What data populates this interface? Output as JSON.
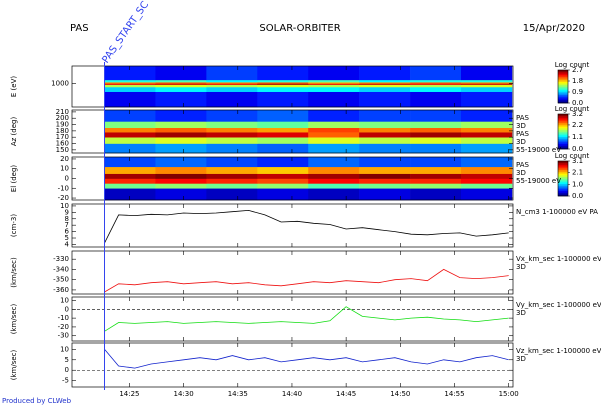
{
  "header": {
    "left": "PAS",
    "center": "SOLAR-ORBITER",
    "right": "15/Apr/2020",
    "footer": "Produced by CLWeb"
  },
  "time_axis": {
    "xlim": [
      19.7,
      60.4
    ],
    "xticks": [
      {
        "value": 25,
        "label": "14:25"
      },
      {
        "value": 30,
        "label": "14:30"
      },
      {
        "value": 35,
        "label": "14:35"
      },
      {
        "value": 40,
        "label": "14:40"
      },
      {
        "value": 45,
        "label": "14:45"
      },
      {
        "value": 50,
        "label": "14:50"
      },
      {
        "value": 55,
        "label": "14:55"
      },
      {
        "value": 60,
        "label": "15:00"
      }
    ]
  },
  "marker": {
    "x": 22.7,
    "label": "PAS_START_SC",
    "color": "#3344ee"
  },
  "chart_data": [
    {
      "type": "spectrogram",
      "y_label": "E (eV)",
      "log": true,
      "ylim": [
        10,
        30000
      ],
      "yticks": [
        1000
      ],
      "x": [
        22.7,
        27.4,
        32.1,
        36.8,
        41.5,
        46.2,
        50.9,
        55.6,
        60.3
      ],
      "bins": [
        10,
        200,
        500,
        800,
        1000,
        1300,
        2000,
        30000
      ],
      "values": [
        [
          0.3,
          0.4,
          0.3,
          0.4,
          0.3,
          0.4,
          0.3,
          0.4
        ],
        [
          0.9,
          1.0,
          0.9,
          1.0,
          1.0,
          0.9,
          1.0,
          0.9
        ],
        [
          1.5,
          1.6,
          1.5,
          1.6,
          1.5,
          1.6,
          1.5,
          1.6
        ],
        [
          2.4,
          2.5,
          2.4,
          2.6,
          2.4,
          2.5,
          2.4,
          2.5
        ],
        [
          2.0,
          2.1,
          2.0,
          2.1,
          1.9,
          2.0,
          2.1,
          2.0
        ],
        [
          1.1,
          1.2,
          1.0,
          1.1,
          1.2,
          1.0,
          1.1,
          1.1
        ],
        [
          0.4,
          0.3,
          0.5,
          0.4,
          0.3,
          0.4,
          0.5,
          0.3
        ]
      ],
      "colorbar": {
        "title": "Log count",
        "lim": [
          0,
          2.7
        ],
        "ticks": [
          2.7,
          1.8,
          0.9,
          {
            "value": 0,
            "label": "0.0"
          }
        ]
      },
      "side_labels": []
    },
    {
      "type": "spectrogram",
      "y_label": "Az (deg)",
      "log": false,
      "ylim": [
        145,
        213
      ],
      "yticks": [
        210,
        200,
        190,
        180,
        170,
        160,
        150
      ],
      "x": [
        22.7,
        27.4,
        32.1,
        36.8,
        41.5,
        46.2,
        50.9,
        55.6,
        60.3
      ],
      "bins": [
        145,
        160,
        170,
        178,
        185,
        195,
        213
      ],
      "values": [
        [
          0.8,
          0.9,
          0.8,
          0.7,
          0.9,
          0.8,
          0.8,
          0.9
        ],
        [
          1.8,
          1.9,
          1.8,
          1.7,
          1.9,
          1.8,
          1.9,
          1.8
        ],
        [
          3.0,
          3.1,
          3.0,
          2.9,
          2.5,
          3.0,
          3.1,
          3.0
        ],
        [
          2.4,
          2.5,
          2.4,
          2.3,
          2.6,
          2.4,
          2.5,
          2.4
        ],
        [
          1.6,
          1.7,
          1.6,
          1.5,
          1.7,
          1.6,
          1.6,
          1.7
        ],
        [
          0.6,
          0.5,
          0.6,
          0.7,
          0.5,
          0.6,
          0.6,
          0.5
        ]
      ],
      "colorbar": {
        "title": "Log count",
        "lim": [
          0,
          3.2
        ],
        "ticks": [
          3.2,
          2.2,
          1.1,
          {
            "value": 0,
            "label": "0.0"
          }
        ]
      },
      "side_labels": [
        "PAS",
        "3D",
        "PAS",
        "3D",
        "55-19000 eV"
      ]
    },
    {
      "type": "spectrogram",
      "y_label": "El (deg)",
      "log": false,
      "ylim": [
        -22,
        22
      ],
      "yticks": [
        20,
        10,
        0,
        -10,
        -20
      ],
      "x": [
        22.7,
        27.4,
        32.1,
        36.8,
        41.5,
        46.2,
        50.9,
        55.6,
        60.3
      ],
      "bins": [
        -22,
        -10,
        -5,
        0,
        5,
        12,
        22
      ],
      "values": [
        [
          0.2,
          0.3,
          0.2,
          0.3,
          0.2,
          0.3,
          0.2,
          0.3
        ],
        [
          1.5,
          1.6,
          1.5,
          1.6,
          1.4,
          1.5,
          1.6,
          1.5
        ],
        [
          2.6,
          2.7,
          2.6,
          2.5,
          2.7,
          2.6,
          2.6,
          2.7
        ],
        [
          3.0,
          3.1,
          3.0,
          2.9,
          3.0,
          3.1,
          3.0,
          2.9
        ],
        [
          2.2,
          2.3,
          2.2,
          2.1,
          2.3,
          2.2,
          2.2,
          2.3
        ],
        [
          0.6,
          0.7,
          0.6,
          0.5,
          0.7,
          0.6,
          0.6,
          0.7
        ]
      ],
      "colorbar": {
        "title": "Log count",
        "lim": [
          0,
          3.1
        ],
        "ticks": [
          3.1,
          2.1,
          {
            "value": 1,
            "label": "1.0"
          },
          {
            "value": 0,
            "label": "0.0"
          }
        ]
      },
      "side_labels": [
        "PAS",
        "3D",
        "55-19000 eV"
      ]
    },
    {
      "type": "line",
      "y_label": "(cm-3)",
      "ylim": [
        3.6,
        10.3
      ],
      "yticks": [
        10,
        9,
        8,
        7,
        6,
        5,
        4
      ],
      "color": "#000000",
      "x": [
        22.7,
        24,
        25.5,
        27,
        28.5,
        30,
        31.5,
        33,
        34.5,
        36,
        37.5,
        39,
        40.5,
        42,
        43.5,
        45,
        46.5,
        48,
        49.5,
        51,
        52.5,
        54,
        55.5,
        57,
        58.5,
        60
      ],
      "values": [
        4.2,
        8.6,
        8.5,
        8.7,
        8.6,
        8.9,
        8.8,
        8.9,
        9.1,
        9.3,
        8.6,
        7.5,
        7.6,
        7.3,
        7.1,
        6.4,
        6.6,
        6.3,
        6.0,
        5.6,
        5.5,
        5.7,
        5.8,
        5.3,
        5.5,
        5.8
      ],
      "side_labels": [
        "N_cm3 1-100000 eV PA"
      ]
    },
    {
      "type": "line",
      "y_label": "(km/sec)",
      "ylim": [
        -364,
        -322
      ],
      "yticks": [
        -330,
        -340,
        -350,
        -360
      ],
      "color": "#ee1111",
      "x": [
        22.7,
        24,
        25.5,
        27,
        28.5,
        30,
        31.5,
        33,
        34.5,
        36,
        37.5,
        39,
        40.5,
        42,
        43.5,
        45,
        46.5,
        48,
        49.5,
        51,
        52.5,
        54,
        55.5,
        57,
        58.5,
        60
      ],
      "values": [
        -362,
        -354,
        -355,
        -353,
        -352,
        -354,
        -353,
        -352,
        -354,
        -353,
        -355,
        -356,
        -354,
        -352,
        -353,
        -351,
        -352,
        -353,
        -350,
        -349,
        -351,
        -340,
        -348,
        -349,
        -348,
        -346
      ],
      "side_labels": [
        "Vx_km_sec 1-100000 eV",
        "3D"
      ]
    },
    {
      "type": "line",
      "y_label": "(km/sec)",
      "ylim": [
        -36,
        14
      ],
      "yticks": [
        10,
        0,
        -10,
        -20,
        -30
      ],
      "color": "#11dd11",
      "hline": 0,
      "x": [
        22.7,
        24,
        25.5,
        27,
        28.5,
        30,
        31.5,
        33,
        34.5,
        36,
        37.5,
        39,
        40.5,
        42,
        43.5,
        45,
        46.5,
        48,
        49.5,
        51,
        52.5,
        54,
        55.5,
        57,
        58.5,
        60
      ],
      "values": [
        -25,
        -15,
        -16,
        -15,
        -14,
        -16,
        -15,
        -14,
        -15,
        -16,
        -15,
        -14,
        -15,
        -16,
        -13,
        3,
        -8,
        -10,
        -12,
        -10,
        -9,
        -11,
        -12,
        -14,
        -12,
        -10
      ],
      "side_labels": [
        "Vy_km_sec 1-100000 eV",
        "3D"
      ]
    },
    {
      "type": "line",
      "y_label": "(km/sec)",
      "ylim": [
        -8,
        13
      ],
      "yticks": [
        10,
        5,
        0,
        -5
      ],
      "color": "#1122cc",
      "hline": 0,
      "x": [
        22.7,
        24,
        25.5,
        27,
        28.5,
        30,
        31.5,
        33,
        34.5,
        36,
        37.5,
        39,
        40.5,
        42,
        43.5,
        45,
        46.5,
        48,
        49.5,
        51,
        52.5,
        54,
        55.5,
        57,
        58.5,
        60
      ],
      "values": [
        10,
        2,
        1,
        3,
        4,
        5,
        6,
        5,
        7,
        5,
        6,
        4,
        5,
        6,
        5,
        6,
        4,
        5,
        6,
        4,
        3,
        5,
        4,
        6,
        7,
        5
      ],
      "side_labels": [
        "Vz_km_sec 1-100000 eV",
        "3D"
      ]
    }
  ]
}
